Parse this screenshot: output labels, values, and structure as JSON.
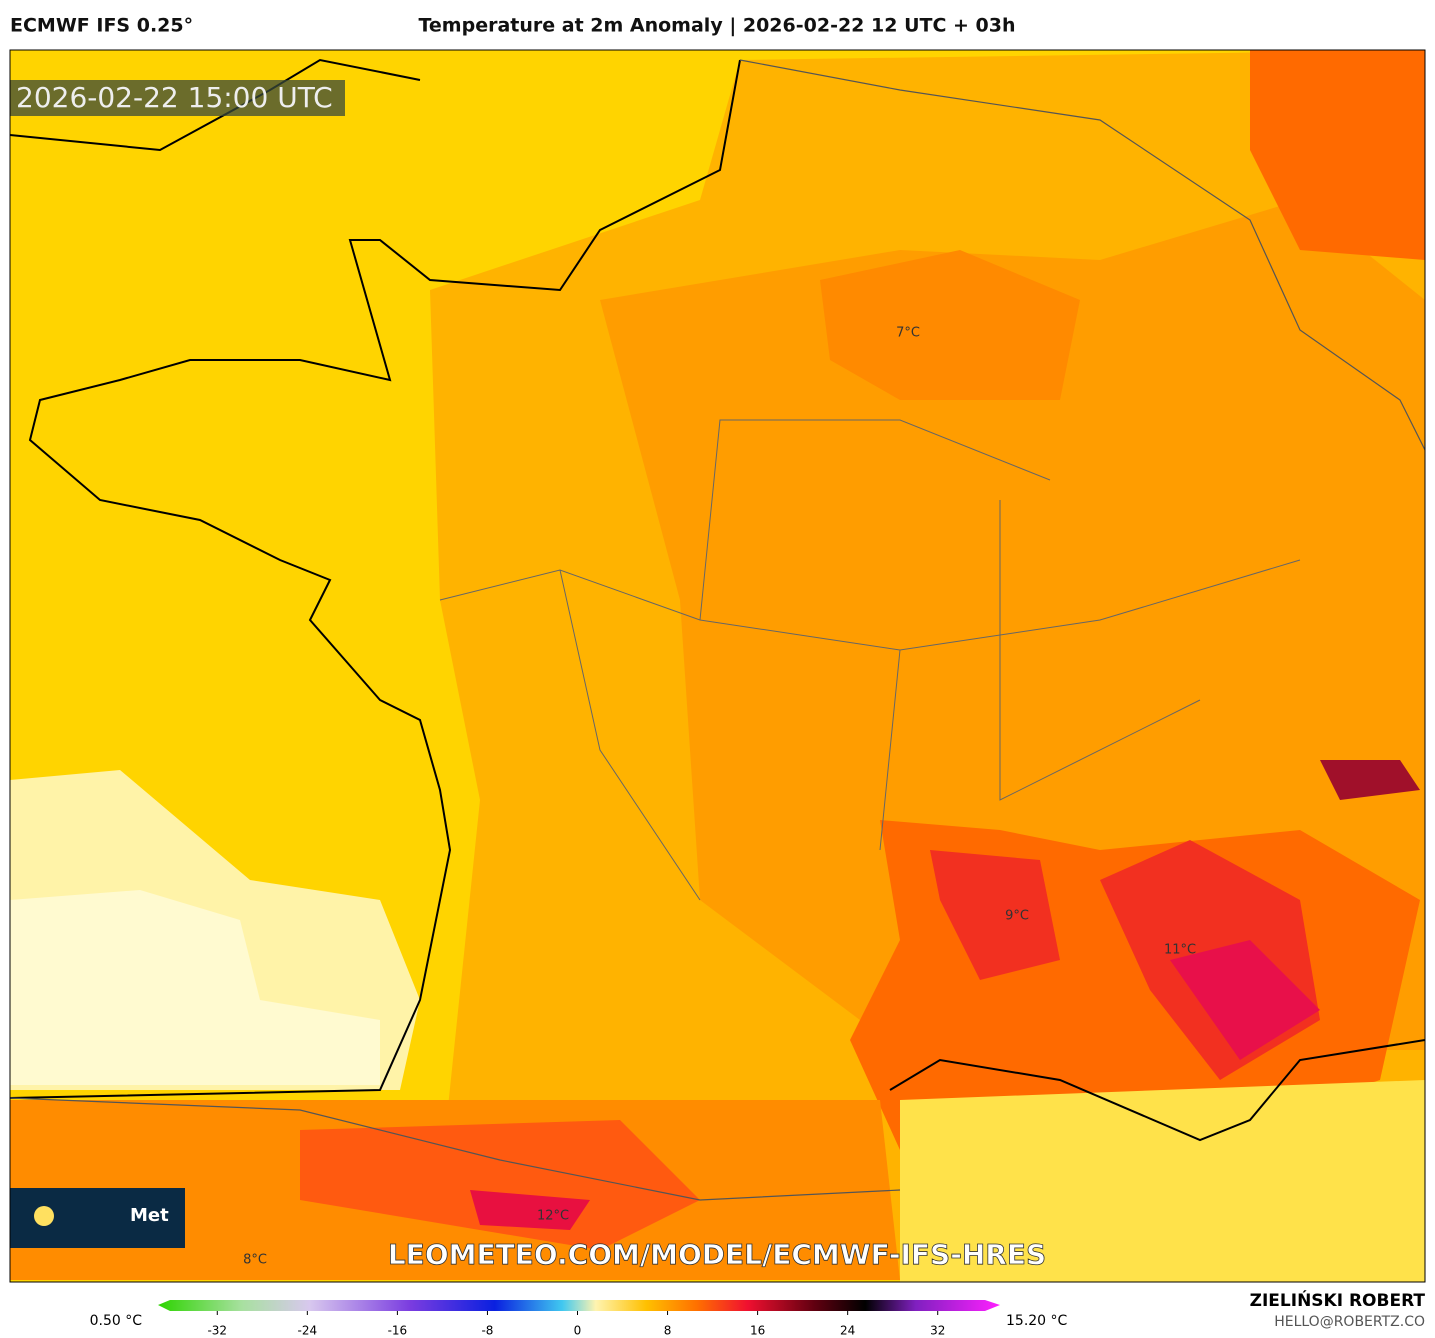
{
  "header": {
    "model": "ECMWF IFS 0.25°",
    "title": "Temperature at 2m Anomaly | 2026-02-22 12 UTC + 03h"
  },
  "map": {
    "valid_time": "2026-02-22 15:00 UTC",
    "labels": [
      "7°C",
      "9°C",
      "11°C",
      "12°C",
      "8°C"
    ],
    "watermark": "LEOMETEO.COM/MODEL/ECMWF-IFS-HRES",
    "logo": "Met"
  },
  "colorbar": {
    "min_label": "0.50 °C",
    "max_label": "15.20 °C",
    "lim": [
      -36.2,
      36.2
    ],
    "ticks": [
      -32,
      -24,
      -16,
      -8,
      0,
      8,
      16,
      24,
      32
    ]
  },
  "footer": {
    "author": "ZIELIŃSKI ROBERT",
    "contact": "HELLO@ROBERTZ.CO"
  }
}
